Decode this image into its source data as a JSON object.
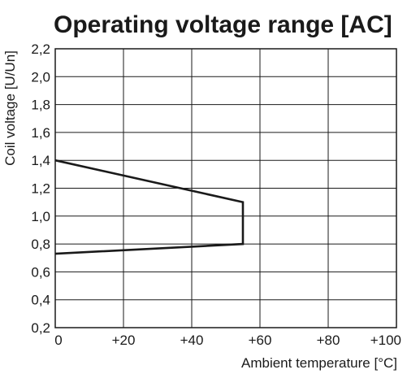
{
  "chart_data": {
    "type": "line",
    "title": "Operating voltage range [AC]",
    "xlabel": "Ambient temperature [°C]",
    "ylabel": "Coil voltage [U/Un]",
    "xlim": [
      0,
      100
    ],
    "ylim": [
      0.2,
      2.2
    ],
    "x_ticks": [
      0,
      20,
      40,
      60,
      80,
      100
    ],
    "x_tick_labels": [
      "0",
      "+20",
      "+40",
      "+60",
      "+80",
      "+100"
    ],
    "y_ticks": [
      0.2,
      0.4,
      0.6,
      0.8,
      1.0,
      1.2,
      1.4,
      1.6,
      1.8,
      2.0,
      2.2
    ],
    "y_tick_labels": [
      "0,2",
      "0,4",
      "0,6",
      "0,8",
      "1,0",
      "1,2",
      "1,4",
      "1,6",
      "1,8",
      "2,0",
      "2,2"
    ],
    "grid": true,
    "line_color": "#1a1a1a",
    "series": [
      {
        "x": [
          0,
          55,
          55,
          0
        ],
        "y": [
          1.4,
          1.1,
          0.8,
          0.73
        ]
      }
    ]
  }
}
